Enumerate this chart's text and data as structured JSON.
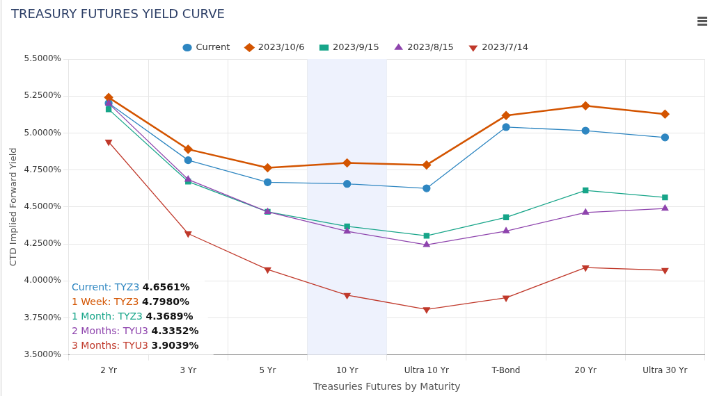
{
  "chart_data": {
    "type": "line",
    "title": "TREASURY FUTURES YIELD CURVE",
    "xlabel": "Treasuries Futures by Maturity",
    "ylabel": "CTD Implied Forward Yield",
    "categories": [
      "2 Yr",
      "3 Yr",
      "5 Yr",
      "10 Yr",
      "Ultra 10 Yr",
      "T-Bond",
      "20 Yr",
      "Ultra 30 Yr"
    ],
    "series": [
      {
        "name": "Current",
        "color": "#2e86c1",
        "marker": "circle",
        "values": [
          5.202,
          4.816,
          4.667,
          4.6561,
          4.626,
          5.04,
          5.016,
          4.97
        ]
      },
      {
        "name": "2023/10/6",
        "color": "#d35400",
        "marker": "diamond",
        "values": [
          5.24,
          4.89,
          4.765,
          4.798,
          4.784,
          5.118,
          5.184,
          5.128
        ]
      },
      {
        "name": "2023/9/15",
        "color": "#17a589",
        "marker": "square",
        "values": [
          5.16,
          4.672,
          4.467,
          4.3689,
          4.305,
          4.43,
          4.612,
          4.565
        ]
      },
      {
        "name": "2023/8/15",
        "color": "#8e44ad",
        "marker": "triangle",
        "values": [
          5.2,
          4.686,
          4.467,
          4.3352,
          4.244,
          4.337,
          4.463,
          4.49
        ]
      },
      {
        "name": "2023/7/14",
        "color": "#c0392b",
        "marker": "triangle-down",
        "values": [
          4.94,
          4.32,
          4.077,
          3.9039,
          3.807,
          3.886,
          4.09,
          4.072
        ]
      }
    ],
    "ylim": [
      3.5,
      5.5
    ],
    "yticks": [
      {
        "value": 3.5,
        "label": "3.5000%"
      },
      {
        "value": 3.75,
        "label": "3.7500%"
      },
      {
        "value": 4,
        "label": "4.0000%"
      },
      {
        "value": 4.25,
        "label": "4.2500%"
      },
      {
        "value": 4.5,
        "label": "4.5000%"
      },
      {
        "value": 4.75,
        "label": "4.7500%"
      },
      {
        "value": 5,
        "label": "5.0000%"
      },
      {
        "value": 5.25,
        "label": "5.2500%"
      },
      {
        "value": 5.5,
        "label": "5.5000%"
      }
    ],
    "bands": [
      {
        "axis": "x",
        "from": "10 Yr",
        "to": "10 Yr",
        "color": "#eef2fd"
      }
    ],
    "annotations": [
      "Current: TYZ3 4.6561%",
      "1 Week: TYZ3 4.7980%",
      "1 Month: TYZ3 4.3689%",
      "2 Months: TYU3 4.3352%",
      "3 Months: TYU3 3.9039%"
    ],
    "grid": true,
    "legend": "top"
  }
}
